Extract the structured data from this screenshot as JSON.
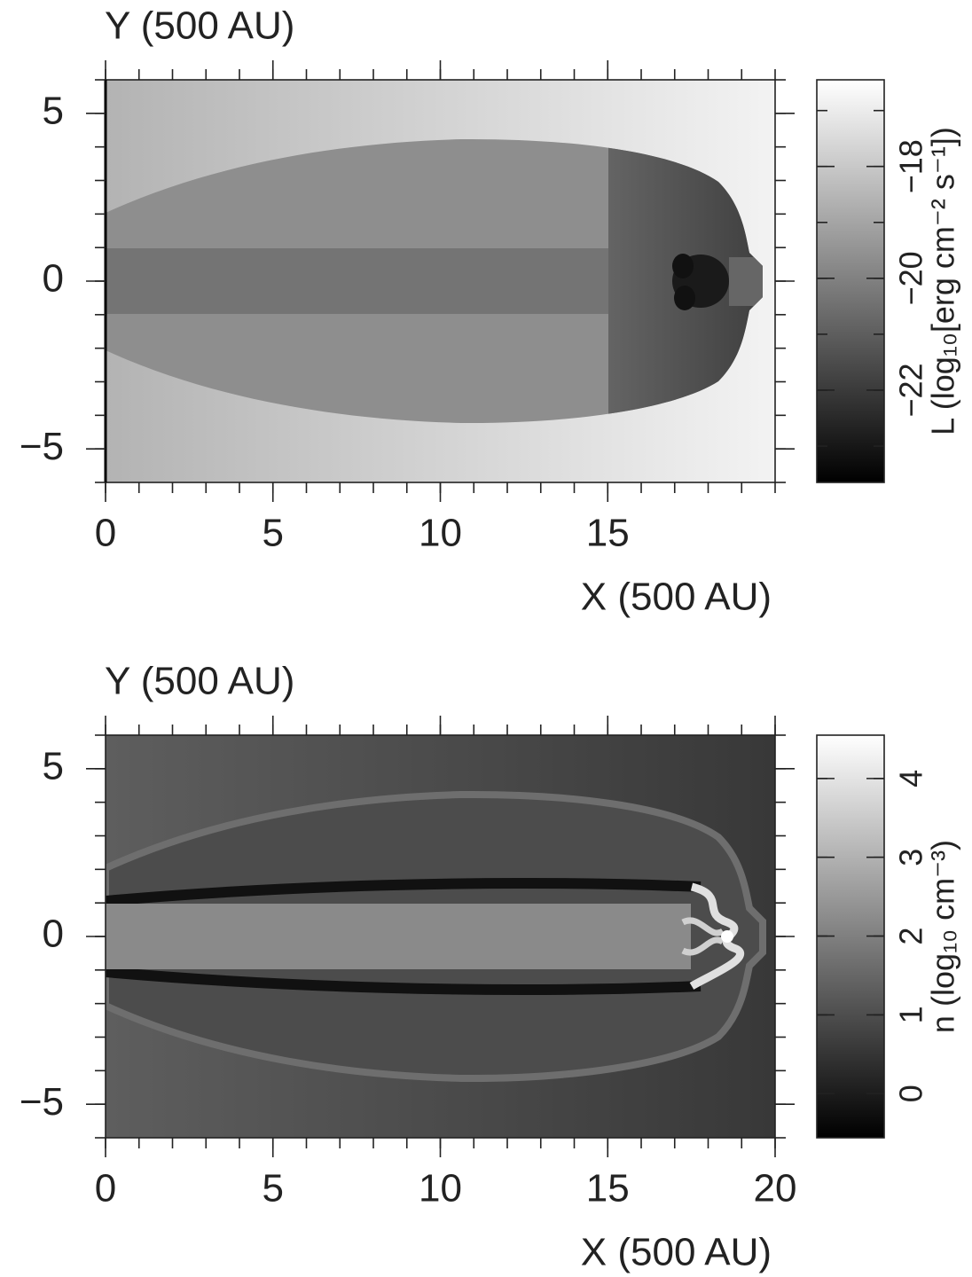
{
  "chart_data": [
    {
      "type": "heatmap",
      "ylabel": "Y (500 AU)",
      "xlabel": "X (500 AU)",
      "xlim": [
        0,
        20
      ],
      "ylim": [
        -6,
        6
      ],
      "xticks": [
        0,
        5,
        10,
        15
      ],
      "yticks": [
        {
          "value": -5,
          "label": "−5"
        },
        0,
        5
      ],
      "colorbar": {
        "label": "L (log₁₀[erg cm⁻² s⁻¹])",
        "lim": [
          -23.65,
          -16.45
        ],
        "ticks": [
          {
            "value": -22,
            "label": "−22"
          },
          {
            "value": -20,
            "label": "−20"
          },
          {
            "value": -18,
            "label": "−18"
          }
        ]
      }
    },
    {
      "type": "heatmap",
      "ylabel": "Y (500 AU)",
      "xlabel": "X (500 AU)",
      "xlim": [
        0,
        20
      ],
      "ylim": [
        -6,
        6
      ],
      "xticks": [
        0,
        5,
        10,
        15,
        20
      ],
      "yticks": [
        {
          "value": -5,
          "label": "−5"
        },
        0,
        5
      ],
      "colorbar": {
        "label": "n (log₁₀ cm⁻³)",
        "lim": [
          -0.56,
          4.55
        ],
        "ticks": [
          0,
          1,
          2,
          3,
          4
        ]
      }
    }
  ]
}
